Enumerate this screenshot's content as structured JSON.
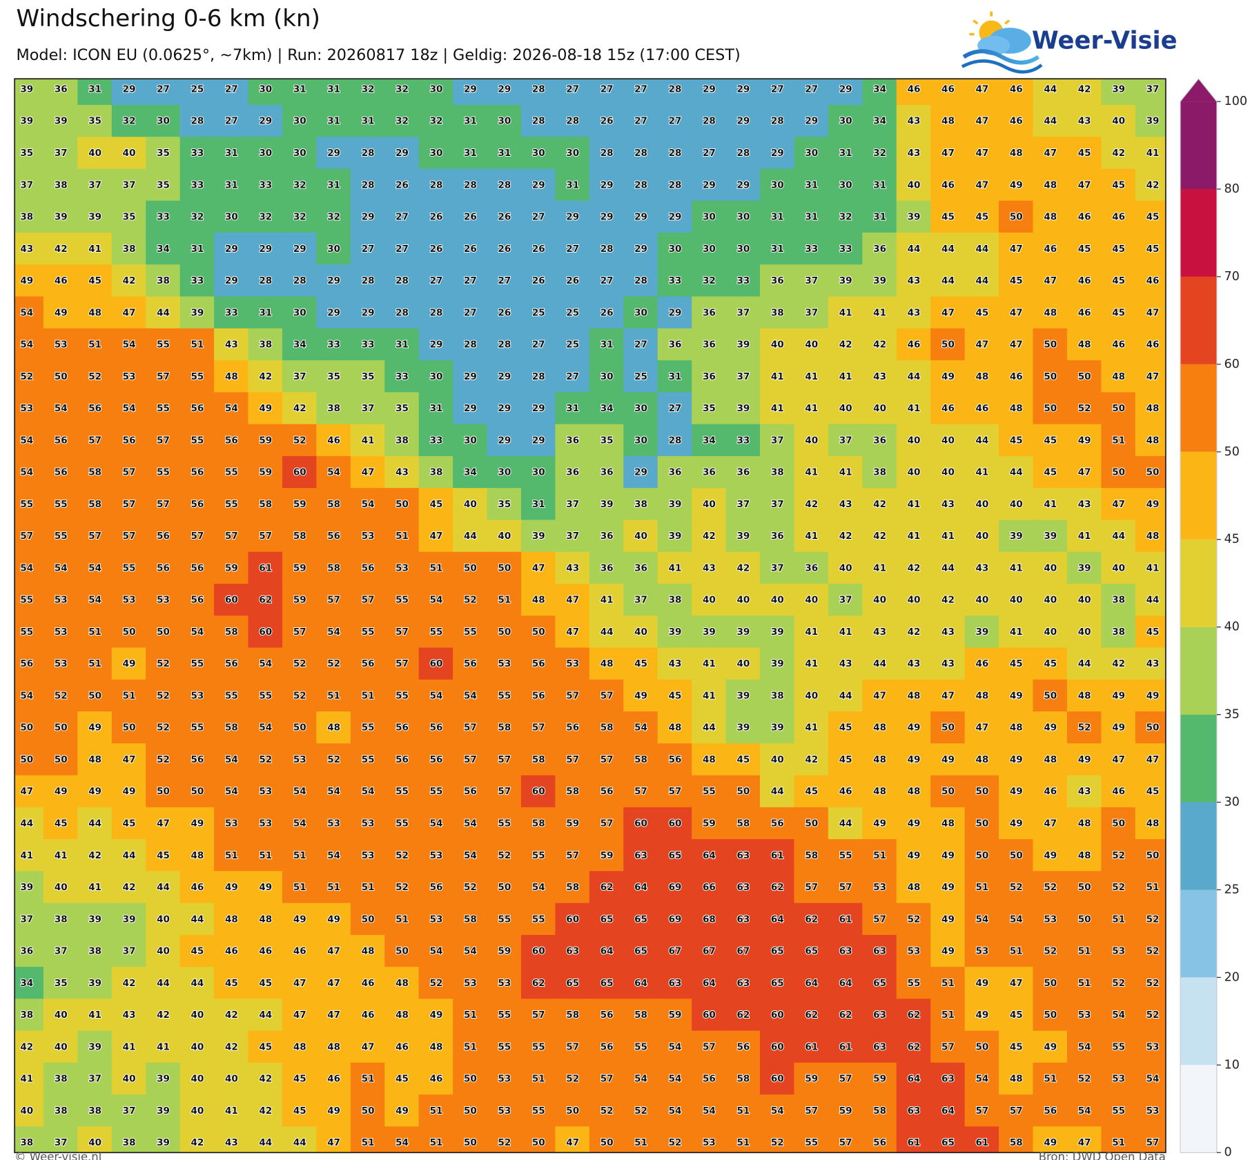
{
  "chart_data": {
    "type": "heatmap",
    "title": "Windschering 0-6 km (kn)",
    "subtitle": "Model: ICON EU (0.0625°, ~7km) | Run: 20260817 18z | Geldig: 2026-08-18 15z (17:00 CEST)",
    "logo": "Weer-Visie",
    "credit": "© Weer-visie.nl",
    "source": "Bron: DWD Open Data",
    "levels": [
      0,
      10,
      20,
      25,
      30,
      35,
      40,
      45,
      50,
      60,
      70,
      80,
      100
    ],
    "colors": [
      "#f2f6fa",
      "#c6e2f0",
      "#86c3e4",
      "#58a9cc",
      "#55b96d",
      "#a9d156",
      "#e2cf31",
      "#fbb616",
      "#f77f10",
      "#e4441f",
      "#c8113f",
      "#8b1a68"
    ],
    "values": [
      [
        39,
        36,
        31,
        29,
        27,
        25,
        27,
        30,
        31,
        31,
        32,
        32,
        30,
        29,
        29,
        28,
        27,
        27,
        27,
        28,
        29,
        29,
        27,
        27,
        29,
        34,
        46,
        46,
        47,
        46,
        44,
        42,
        39,
        37
      ],
      [
        39,
        39,
        35,
        32,
        30,
        28,
        27,
        29,
        30,
        31,
        31,
        32,
        32,
        31,
        30,
        28,
        28,
        26,
        27,
        27,
        28,
        29,
        28,
        29,
        30,
        34,
        43,
        48,
        47,
        46,
        44,
        43,
        40,
        39
      ],
      [
        35,
        37,
        40,
        40,
        35,
        33,
        31,
        30,
        30,
        29,
        28,
        29,
        30,
        31,
        31,
        30,
        30,
        28,
        28,
        28,
        27,
        28,
        29,
        30,
        31,
        32,
        43,
        47,
        47,
        48,
        47,
        45,
        42,
        41
      ],
      [
        37,
        38,
        37,
        37,
        35,
        33,
        31,
        33,
        32,
        31,
        28,
        26,
        28,
        28,
        28,
        29,
        31,
        29,
        28,
        28,
        29,
        29,
        30,
        31,
        30,
        31,
        40,
        46,
        47,
        49,
        48,
        47,
        45,
        42
      ],
      [
        38,
        39,
        39,
        35,
        33,
        32,
        30,
        32,
        32,
        32,
        29,
        27,
        26,
        26,
        26,
        27,
        29,
        29,
        29,
        29,
        30,
        30,
        31,
        31,
        32,
        31,
        39,
        45,
        45,
        50,
        48,
        46,
        46,
        45
      ],
      [
        43,
        42,
        41,
        38,
        34,
        31,
        29,
        29,
        29,
        30,
        27,
        27,
        26,
        26,
        26,
        26,
        27,
        28,
        29,
        30,
        30,
        30,
        31,
        33,
        33,
        36,
        44,
        44,
        44,
        47,
        46,
        45,
        45,
        45
      ],
      [
        49,
        46,
        45,
        42,
        38,
        33,
        29,
        28,
        28,
        29,
        28,
        28,
        27,
        27,
        27,
        26,
        26,
        27,
        28,
        33,
        32,
        33,
        36,
        37,
        39,
        39,
        43,
        44,
        44,
        45,
        47,
        46,
        45,
        46
      ],
      [
        54,
        49,
        48,
        47,
        44,
        39,
        33,
        31,
        30,
        29,
        29,
        28,
        28,
        27,
        26,
        25,
        25,
        26,
        30,
        29,
        36,
        37,
        38,
        37,
        41,
        41,
        43,
        47,
        45,
        47,
        48,
        46,
        45,
        47
      ],
      [
        54,
        53,
        51,
        54,
        55,
        51,
        43,
        38,
        34,
        33,
        33,
        31,
        29,
        28,
        28,
        27,
        25,
        31,
        27,
        36,
        36,
        39,
        40,
        40,
        42,
        42,
        46,
        50,
        47,
        47,
        50,
        48,
        46,
        46
      ],
      [
        52,
        50,
        52,
        53,
        57,
        55,
        48,
        42,
        37,
        35,
        35,
        33,
        30,
        29,
        29,
        28,
        27,
        30,
        25,
        31,
        36,
        37,
        41,
        41,
        41,
        43,
        44,
        49,
        48,
        46,
        50,
        50,
        48,
        47
      ],
      [
        53,
        54,
        56,
        54,
        55,
        56,
        54,
        49,
        42,
        38,
        37,
        35,
        31,
        29,
        29,
        29,
        31,
        34,
        30,
        27,
        35,
        39,
        41,
        41,
        40,
        40,
        41,
        46,
        46,
        48,
        50,
        52,
        50,
        48
      ],
      [
        54,
        56,
        57,
        56,
        57,
        55,
        56,
        59,
        52,
        46,
        41,
        38,
        33,
        30,
        29,
        29,
        36,
        35,
        30,
        28,
        34,
        33,
        37,
        40,
        37,
        36,
        40,
        40,
        44,
        45,
        45,
        49,
        51,
        48
      ],
      [
        54,
        56,
        58,
        57,
        55,
        56,
        55,
        59,
        60,
        54,
        47,
        43,
        38,
        34,
        30,
        30,
        36,
        36,
        29,
        36,
        36,
        36,
        38,
        41,
        41,
        38,
        40,
        40,
        41,
        44,
        45,
        47,
        50,
        50
      ],
      [
        55,
        55,
        58,
        57,
        57,
        56,
        55,
        58,
        59,
        58,
        54,
        50,
        45,
        40,
        35,
        31,
        37,
        39,
        38,
        39,
        40,
        37,
        37,
        42,
        43,
        42,
        41,
        43,
        40,
        40,
        41,
        43,
        47,
        49
      ],
      [
        57,
        55,
        57,
        57,
        56,
        57,
        57,
        57,
        58,
        56,
        53,
        51,
        47,
        44,
        40,
        39,
        37,
        36,
        40,
        39,
        42,
        39,
        36,
        41,
        42,
        42,
        41,
        41,
        40,
        39,
        39,
        41,
        44,
        48
      ],
      [
        54,
        54,
        54,
        55,
        56,
        56,
        59,
        61,
        59,
        58,
        56,
        53,
        51,
        50,
        50,
        47,
        43,
        36,
        36,
        41,
        43,
        42,
        37,
        36,
        40,
        41,
        42,
        44,
        43,
        41,
        40,
        39,
        40,
        41
      ],
      [
        55,
        53,
        54,
        53,
        53,
        56,
        60,
        62,
        59,
        57,
        57,
        55,
        54,
        52,
        51,
        48,
        47,
        41,
        37,
        38,
        40,
        40,
        40,
        40,
        37,
        40,
        40,
        42,
        40,
        40,
        40,
        40,
        38,
        44
      ],
      [
        55,
        53,
        51,
        50,
        50,
        54,
        58,
        60,
        57,
        54,
        55,
        57,
        55,
        55,
        50,
        50,
        47,
        44,
        40,
        39,
        39,
        39,
        39,
        41,
        41,
        43,
        42,
        43,
        39,
        41,
        40,
        40,
        38,
        45
      ],
      [
        56,
        53,
        51,
        49,
        52,
        55,
        56,
        54,
        52,
        52,
        56,
        57,
        60,
        56,
        53,
        56,
        53,
        48,
        45,
        43,
        41,
        40,
        39,
        41,
        43,
        44,
        43,
        43,
        46,
        45,
        45,
        44,
        42,
        43
      ],
      [
        54,
        52,
        50,
        51,
        52,
        53,
        55,
        55,
        52,
        51,
        51,
        55,
        54,
        54,
        55,
        56,
        57,
        57,
        49,
        45,
        41,
        39,
        38,
        40,
        44,
        47,
        48,
        47,
        48,
        49,
        50,
        48,
        49,
        49
      ],
      [
        50,
        50,
        49,
        50,
        52,
        55,
        58,
        54,
        50,
        48,
        55,
        56,
        56,
        57,
        58,
        57,
        56,
        58,
        54,
        48,
        44,
        39,
        39,
        41,
        45,
        48,
        49,
        50,
        47,
        48,
        49,
        52,
        49,
        50
      ],
      [
        50,
        50,
        48,
        47,
        52,
        56,
        54,
        52,
        53,
        52,
        55,
        56,
        56,
        57,
        57,
        58,
        57,
        57,
        58,
        56,
        48,
        45,
        40,
        42,
        45,
        48,
        49,
        49,
        48,
        49,
        48,
        49,
        47,
        47
      ],
      [
        47,
        49,
        49,
        49,
        50,
        50,
        54,
        53,
        54,
        54,
        54,
        55,
        55,
        56,
        57,
        60,
        58,
        56,
        57,
        57,
        55,
        50,
        44,
        45,
        46,
        48,
        48,
        50,
        50,
        49,
        46,
        43,
        46,
        45
      ],
      [
        44,
        45,
        44,
        45,
        47,
        49,
        53,
        53,
        54,
        53,
        53,
        55,
        54,
        54,
        55,
        58,
        59,
        57,
        60,
        60,
        59,
        58,
        56,
        50,
        44,
        49,
        49,
        48,
        50,
        49,
        47,
        48,
        50,
        48
      ],
      [
        41,
        41,
        42,
        44,
        45,
        48,
        51,
        51,
        51,
        54,
        53,
        52,
        53,
        54,
        52,
        55,
        57,
        59,
        63,
        65,
        64,
        63,
        61,
        58,
        55,
        51,
        49,
        49,
        50,
        50,
        49,
        48,
        52,
        50
      ],
      [
        39,
        40,
        41,
        42,
        44,
        46,
        49,
        49,
        51,
        51,
        51,
        52,
        56,
        52,
        50,
        54,
        58,
        62,
        64,
        69,
        66,
        63,
        62,
        57,
        57,
        53,
        48,
        49,
        51,
        52,
        52,
        50,
        52,
        51
      ],
      [
        37,
        38,
        39,
        39,
        40,
        44,
        48,
        48,
        49,
        49,
        50,
        51,
        53,
        58,
        55,
        55,
        60,
        65,
        65,
        69,
        68,
        63,
        64,
        62,
        61,
        57,
        52,
        49,
        54,
        54,
        53,
        50,
        51,
        52
      ],
      [
        36,
        37,
        38,
        37,
        40,
        45,
        46,
        46,
        46,
        47,
        48,
        50,
        54,
        54,
        59,
        60,
        63,
        64,
        65,
        67,
        67,
        67,
        65,
        65,
        63,
        63,
        53,
        49,
        53,
        51,
        52,
        51,
        53,
        52
      ],
      [
        34,
        35,
        39,
        42,
        44,
        44,
        45,
        45,
        47,
        47,
        46,
        48,
        52,
        53,
        53,
        62,
        65,
        65,
        64,
        63,
        64,
        63,
        65,
        64,
        64,
        65,
        55,
        51,
        49,
        47,
        50,
        51,
        52,
        52
      ],
      [
        38,
        40,
        41,
        43,
        42,
        40,
        42,
        44,
        47,
        47,
        46,
        48,
        49,
        51,
        55,
        57,
        58,
        56,
        58,
        59,
        60,
        62,
        60,
        62,
        62,
        63,
        62,
        51,
        49,
        45,
        50,
        53,
        54,
        52
      ],
      [
        42,
        40,
        39,
        41,
        41,
        40,
        42,
        45,
        48,
        48,
        47,
        46,
        48,
        51,
        55,
        55,
        57,
        56,
        55,
        54,
        57,
        56,
        60,
        61,
        61,
        63,
        62,
        57,
        50,
        45,
        49,
        54,
        55,
        53
      ],
      [
        41,
        38,
        37,
        40,
        39,
        40,
        40,
        42,
        45,
        46,
        51,
        45,
        46,
        50,
        53,
        51,
        52,
        57,
        54,
        54,
        56,
        58,
        60,
        59,
        57,
        59,
        64,
        63,
        54,
        48,
        51,
        52,
        53,
        54
      ],
      [
        40,
        38,
        38,
        37,
        39,
        40,
        41,
        42,
        45,
        49,
        50,
        49,
        51,
        50,
        53,
        55,
        50,
        52,
        52,
        54,
        54,
        51,
        54,
        57,
        59,
        58,
        63,
        64,
        57,
        57,
        56,
        54,
        55,
        53
      ],
      [
        38,
        37,
        40,
        38,
        39,
        42,
        43,
        44,
        44,
        47,
        51,
        54,
        51,
        50,
        52,
        50,
        47,
        50,
        51,
        52,
        53,
        51,
        52,
        55,
        57,
        56,
        61,
        65,
        61,
        58,
        49,
        47,
        51,
        57
      ]
    ]
  }
}
